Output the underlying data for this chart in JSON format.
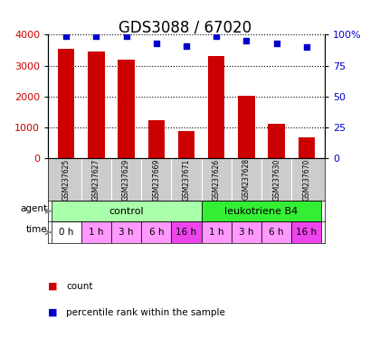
{
  "title": "GDS3088 / 67020",
  "samples": [
    "GSM237625",
    "GSM237627",
    "GSM237629",
    "GSM237669",
    "GSM237671",
    "GSM237626",
    "GSM237628",
    "GSM237630",
    "GSM237670"
  ],
  "counts": [
    3540,
    3460,
    3180,
    1220,
    880,
    3300,
    2020,
    1100,
    670
  ],
  "percentile_ranks": [
    99,
    99,
    99,
    93,
    91,
    99,
    95,
    93,
    90
  ],
  "ylim_left": [
    0,
    4000
  ],
  "ylim_right": [
    0,
    100
  ],
  "yticks_left": [
    0,
    1000,
    2000,
    3000,
    4000
  ],
  "yticks_right": [
    0,
    25,
    50,
    75,
    100
  ],
  "bar_color": "#cc0000",
  "dot_color": "#0000cc",
  "agent_labels": [
    "control",
    "leukotriene B4"
  ],
  "agent_color_control": "#aaffaa",
  "agent_color_ltb4": "#33ee33",
  "time_labels": [
    "0 h",
    "1 h",
    "3 h",
    "6 h",
    "16 h",
    "1 h",
    "3 h",
    "6 h",
    "16 h"
  ],
  "time_colors": [
    "#ffffff",
    "#ff99ff",
    "#ff99ff",
    "#ff99ff",
    "#ee44ee",
    "#ff99ff",
    "#ff99ff",
    "#ff99ff",
    "#ee44ee"
  ],
  "sample_bg_color": "#cccccc",
  "legend_count_color": "#cc0000",
  "legend_dot_color": "#0000cc",
  "title_fontsize": 12,
  "tick_fontsize": 8
}
